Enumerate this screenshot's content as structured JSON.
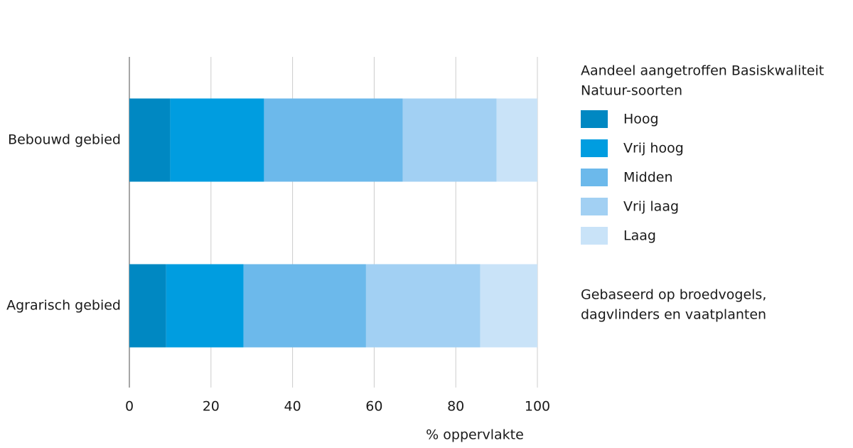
{
  "chart_data": {
    "type": "stacked_barh",
    "categories": [
      "Bebouwd gebied",
      "Agrarisch gebied"
    ],
    "series": [
      {
        "name": "Hoog",
        "color": "#0088c2",
        "values": [
          10,
          9
        ]
      },
      {
        "name": "Vrij hoog",
        "color": "#009de0",
        "values": [
          23,
          19
        ]
      },
      {
        "name": "Midden",
        "color": "#6cb9eb",
        "values": [
          34,
          30
        ]
      },
      {
        "name": "Vrij laag",
        "color": "#a2d0f3",
        "values": [
          23,
          28
        ]
      },
      {
        "name": "Laag",
        "color": "#c9e3f8",
        "values": [
          10,
          14
        ]
      }
    ],
    "xlim": [
      0,
      100
    ],
    "xticks": [
      0,
      20,
      40,
      60,
      80,
      100
    ],
    "xlabel": "% oppervlakte",
    "grid": true,
    "legend_title": [
      "Aandeel aangetroffen Basiskwaliteit",
      "Natuur-soorten"
    ],
    "note": [
      "Gebaseerd op broedvogels,",
      "dagvlinders en vaatplanten"
    ]
  }
}
